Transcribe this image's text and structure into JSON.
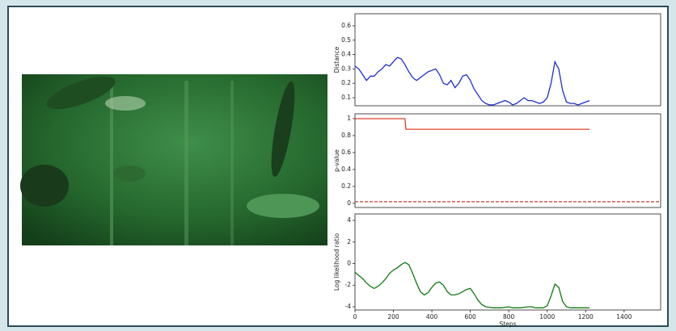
{
  "chart_data": [
    {
      "type": "line",
      "ylabel": "Distance",
      "xlim": [
        0,
        1590
      ],
      "ylim": [
        0.044,
        0.684
      ],
      "yticks": [
        0.1,
        0.2,
        0.3,
        0.4,
        0.5,
        0.6
      ],
      "series": [
        {
          "color": "#1f2fcf",
          "linestyle": "solid",
          "x": [
            0,
            20,
            40,
            60,
            80,
            100,
            120,
            140,
            160,
            180,
            200,
            220,
            240,
            260,
            280,
            300,
            320,
            340,
            360,
            380,
            400,
            420,
            440,
            460,
            480,
            500,
            520,
            540,
            560,
            580,
            600,
            620,
            640,
            660,
            680,
            700,
            720,
            740,
            760,
            780,
            800,
            820,
            840,
            860,
            880,
            900,
            920,
            940,
            960,
            980,
            1000,
            1020,
            1040,
            1060,
            1080,
            1100,
            1120,
            1140,
            1160,
            1180,
            1200,
            1220
          ],
          "values": [
            0.32,
            0.3,
            0.26,
            0.22,
            0.25,
            0.25,
            0.28,
            0.3,
            0.33,
            0.32,
            0.35,
            0.38,
            0.37,
            0.33,
            0.28,
            0.24,
            0.22,
            0.24,
            0.26,
            0.28,
            0.29,
            0.3,
            0.26,
            0.2,
            0.19,
            0.22,
            0.17,
            0.2,
            0.25,
            0.26,
            0.22,
            0.16,
            0.12,
            0.08,
            0.06,
            0.05,
            0.05,
            0.06,
            0.07,
            0.08,
            0.07,
            0.05,
            0.06,
            0.08,
            0.1,
            0.08,
            0.08,
            0.07,
            0.06,
            0.07,
            0.1,
            0.2,
            0.35,
            0.3,
            0.15,
            0.07,
            0.06,
            0.06,
            0.05,
            0.06,
            0.07,
            0.08
          ]
        }
      ]
    },
    {
      "type": "line",
      "ylabel": "p-value",
      "xlim": [
        0,
        1590
      ],
      "ylim": [
        -0.048,
        1.057
      ],
      "yticks": [
        0.0,
        0.2,
        0.4,
        0.6,
        0.8,
        1.0
      ],
      "series": [
        {
          "color": "#e0402a",
          "linestyle": "solid",
          "x": [
            0,
            260,
            265,
            1220
          ],
          "values": [
            1.0,
            1.0,
            0.875,
            0.875
          ]
        },
        {
          "color": "#c83a2a",
          "linestyle": "dashed",
          "x": [
            0,
            1590
          ],
          "values": [
            0.02,
            0.02
          ]
        }
      ]
    },
    {
      "type": "line",
      "ylabel": "Log likelihood ratio",
      "xlabel": "Steps",
      "xlim": [
        0,
        1590
      ],
      "ylim": [
        -4.3,
        4.6
      ],
      "xticks": [
        0,
        200,
        400,
        600,
        800,
        1000,
        1200,
        1400
      ],
      "yticks": [
        -4,
        -2,
        0,
        2,
        4
      ],
      "series": [
        {
          "color": "#127a12",
          "linestyle": "solid",
          "x": [
            0,
            20,
            40,
            60,
            80,
            100,
            120,
            140,
            160,
            180,
            200,
            220,
            240,
            260,
            280,
            300,
            320,
            340,
            360,
            380,
            400,
            420,
            440,
            460,
            480,
            500,
            520,
            540,
            560,
            580,
            600,
            620,
            640,
            660,
            680,
            700,
            720,
            740,
            760,
            780,
            800,
            820,
            840,
            860,
            880,
            900,
            920,
            940,
            960,
            980,
            1000,
            1020,
            1040,
            1060,
            1080,
            1100,
            1120,
            1140,
            1160,
            1180,
            1200,
            1220
          ],
          "values": [
            -0.8,
            -1.1,
            -1.4,
            -1.8,
            -2.1,
            -2.3,
            -2.1,
            -1.8,
            -1.4,
            -0.9,
            -0.6,
            -0.4,
            -0.1,
            0.1,
            -0.1,
            -0.9,
            -1.8,
            -2.6,
            -2.9,
            -2.7,
            -2.2,
            -1.8,
            -1.7,
            -2.0,
            -2.6,
            -2.9,
            -2.9,
            -2.8,
            -2.6,
            -2.4,
            -2.3,
            -2.8,
            -3.4,
            -3.8,
            -4.0,
            -4.05,
            -4.1,
            -4.1,
            -4.1,
            -4.05,
            -4.0,
            -4.1,
            -4.1,
            -4.1,
            -4.05,
            -4.0,
            -4.0,
            -4.1,
            -4.1,
            -4.1,
            -3.9,
            -3.0,
            -1.9,
            -2.2,
            -3.5,
            -4.0,
            -4.1,
            -4.1,
            -4.1,
            -4.1,
            -4.1,
            -4.1
          ]
        }
      ]
    }
  ]
}
